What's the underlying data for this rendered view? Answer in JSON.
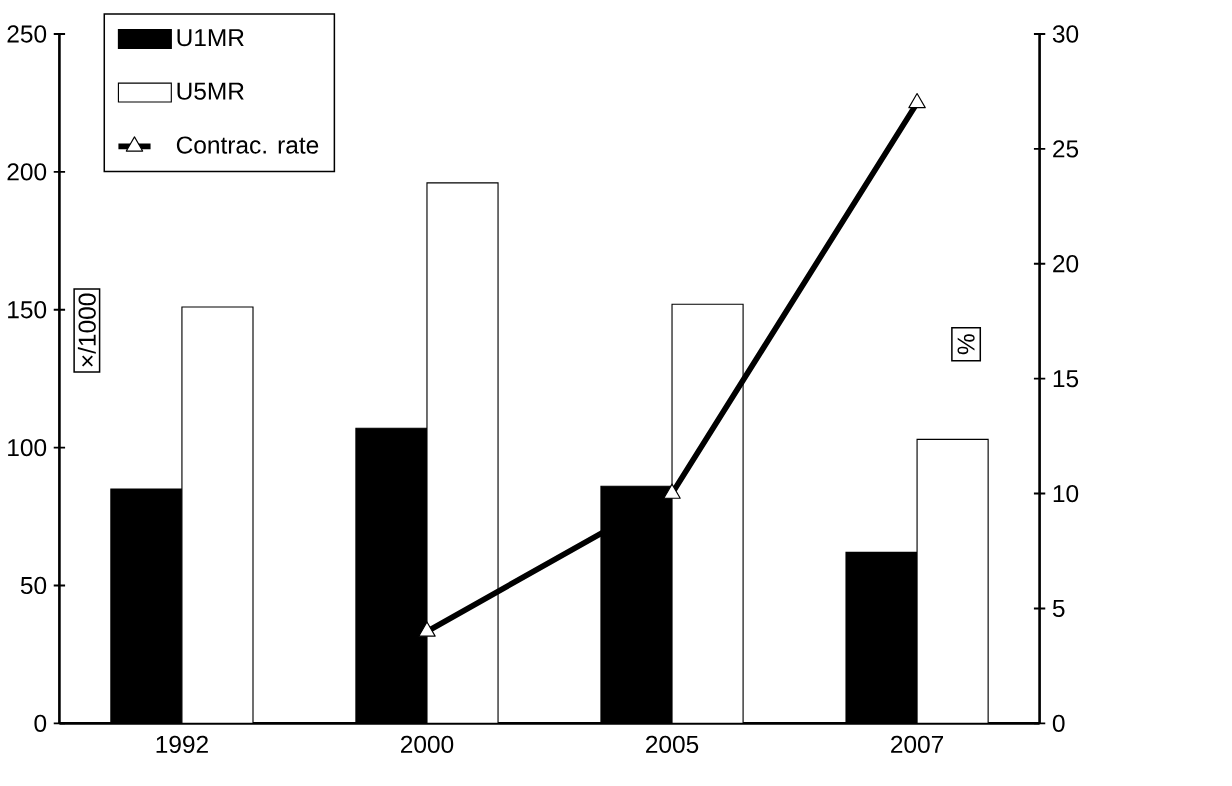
{
  "chart_data": {
    "type": "bar",
    "categories": [
      "1992",
      "2000",
      "2005",
      "2007"
    ],
    "ylabel": "×/1000",
    "y2label": "%",
    "series": [
      {
        "name": "U1MR",
        "color": "#000000",
        "values": [
          85,
          107,
          86,
          62
        ]
      },
      {
        "name": "U5MR",
        "color": "#ffffff",
        "values": [
          151,
          196,
          152,
          103
        ]
      },
      {
        "name": "Contrac. rate",
        "type": "line",
        "axis": "y2",
        "color": "#000000",
        "values": [
          null,
          4,
          10,
          27
        ]
      }
    ],
    "ylim": [
      0,
      250
    ],
    "yticks": [
      0,
      50,
      100,
      150,
      200,
      250
    ],
    "y2lim": [
      0,
      30
    ],
    "y2ticks": [
      0,
      5,
      10,
      15,
      20,
      25,
      30
    ],
    "legend": "top left",
    "marker": "triangle",
    "grid": false
  }
}
